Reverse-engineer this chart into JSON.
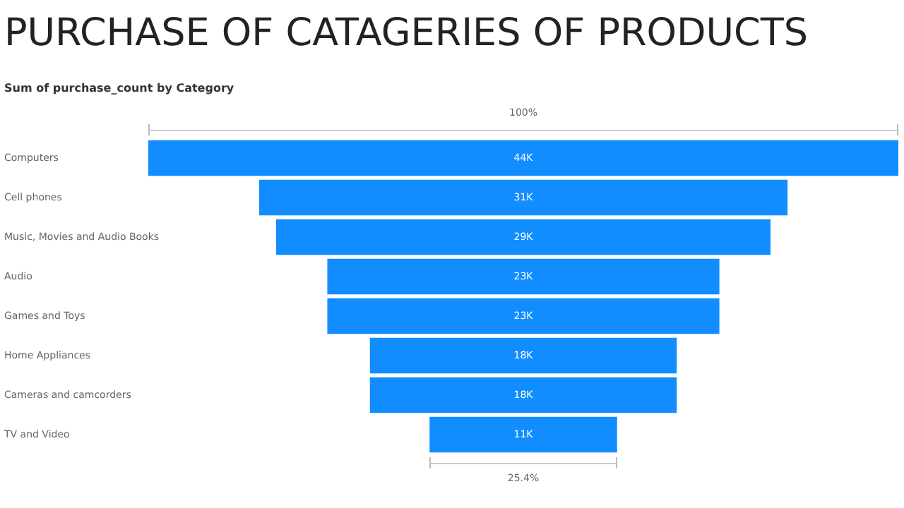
{
  "chart_data": {
    "type": "other",
    "title": "PURCHASE OF CATAGERIES OF PRODUCTS",
    "subtitle": "Sum of purchase_count by Category",
    "categories": [
      "Computers",
      "Cell phones",
      "Music, Movies and Audio Books",
      "Audio",
      "Games and Toys",
      "Home Appliances",
      "Cameras and camcorders",
      "TV and Video"
    ],
    "values": [
      44000,
      31000,
      29000,
      23000,
      23000,
      18000,
      18000,
      11000
    ],
    "value_labels": [
      "44K",
      "31K",
      "29K",
      "23K",
      "23K",
      "18K",
      "18K",
      "11K"
    ],
    "color": "#118dff",
    "annotations": [
      "100%",
      "25.4%"
    ]
  }
}
